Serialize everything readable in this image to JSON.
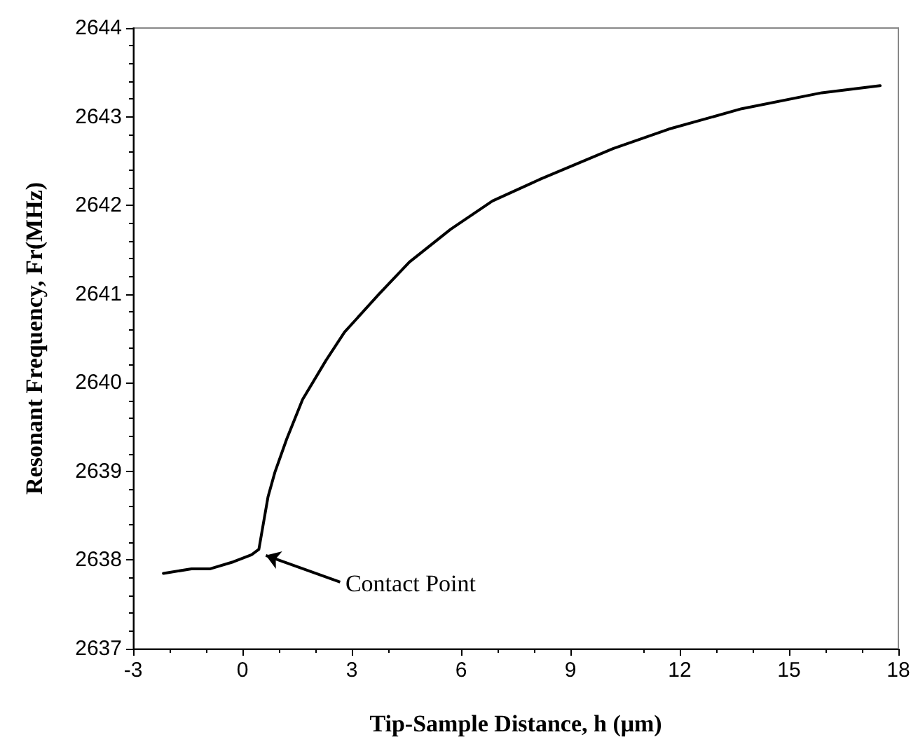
{
  "chart_data": {
    "type": "line",
    "xlabel": "Tip-Sample Distance, h (μm)",
    "ylabel": "Resonant Frequency, Fr(MHz)",
    "x": [
      -2.17,
      -1.4,
      -0.9,
      -0.25,
      0.25,
      0.45,
      0.7,
      0.89,
      1.21,
      1.65,
      2.29,
      2.8,
      3.75,
      4.58,
      5.71,
      6.86,
      8.2,
      10.17,
      11.7,
      13.7,
      15.9,
      17.5
    ],
    "series": [
      {
        "color": "#000000",
        "values": [
          2637.85,
          2637.9,
          2637.9,
          2637.98,
          2638.06,
          2638.12,
          2638.71,
          2638.99,
          2639.36,
          2639.81,
          2640.25,
          2640.57,
          2641.0,
          2641.36,
          2641.73,
          2642.05,
          2642.3,
          2642.64,
          2642.86,
          2643.09,
          2643.27,
          2643.35
        ]
      }
    ],
    "xlim": [
      -3,
      18
    ],
    "xticks": [
      -3,
      0,
      3,
      6,
      9,
      12,
      15,
      18
    ],
    "ylim": [
      2637,
      2644
    ],
    "yticks": [
      2637,
      2638,
      2639,
      2640,
      2641,
      2642,
      2643,
      2644
    ],
    "annotations": [
      {
        "text": "Contact Point",
        "x": 0.45,
        "y": 2638.1
      }
    ],
    "grid": false,
    "marker": "none",
    "line_style": "solid"
  }
}
